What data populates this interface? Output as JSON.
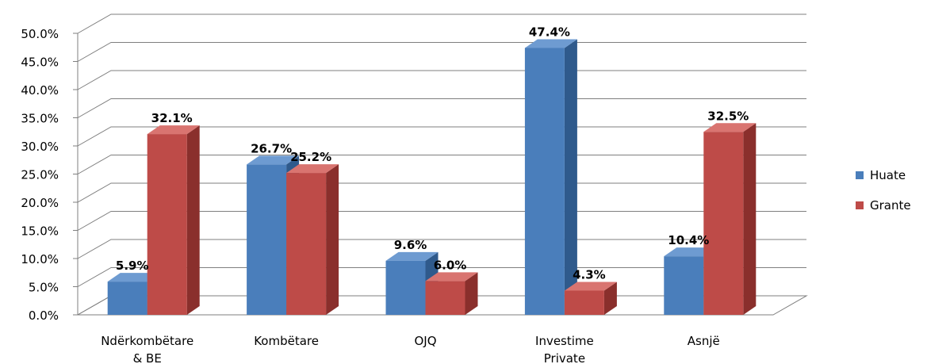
{
  "chart_data": {
    "type": "bar",
    "categories": [
      [
        "Ndërkombëtare",
        "& BE"
      ],
      [
        "Kombëtare"
      ],
      [
        "OJQ"
      ],
      [
        "Investime",
        "Private"
      ],
      [
        "Asnjë"
      ]
    ],
    "series": [
      {
        "name": "Huate",
        "values": [
          5.9,
          26.7,
          9.6,
          47.4,
          10.4
        ],
        "labels": [
          "5.9%",
          "26.7%",
          "9.6%",
          "47.4%",
          "10.4%"
        ]
      },
      {
        "name": "Grante",
        "values": [
          32.1,
          25.2,
          6.0,
          4.3,
          32.5
        ],
        "labels": [
          "32.1%",
          "25.2%",
          "6.0%",
          "4.3%",
          "32.5%"
        ]
      }
    ],
    "yticks": [
      "0.0%",
      "5.0%",
      "10.0%",
      "15.0%",
      "20.0%",
      "25.0%",
      "30.0%",
      "35.0%",
      "40.0%",
      "45.0%",
      "50.0%"
    ],
    "ylim": [
      0,
      50
    ],
    "grid": true,
    "legend_position": "right",
    "title": "",
    "xlabel": "",
    "ylabel": "",
    "colors": {
      "Huate": {
        "front": "#4a7ebb",
        "side": "#2f5a8c",
        "top": "#6e9bd1"
      },
      "Grante": {
        "front": "#be4b48",
        "side": "#8a2f2c",
        "top": "#d97470"
      }
    }
  }
}
